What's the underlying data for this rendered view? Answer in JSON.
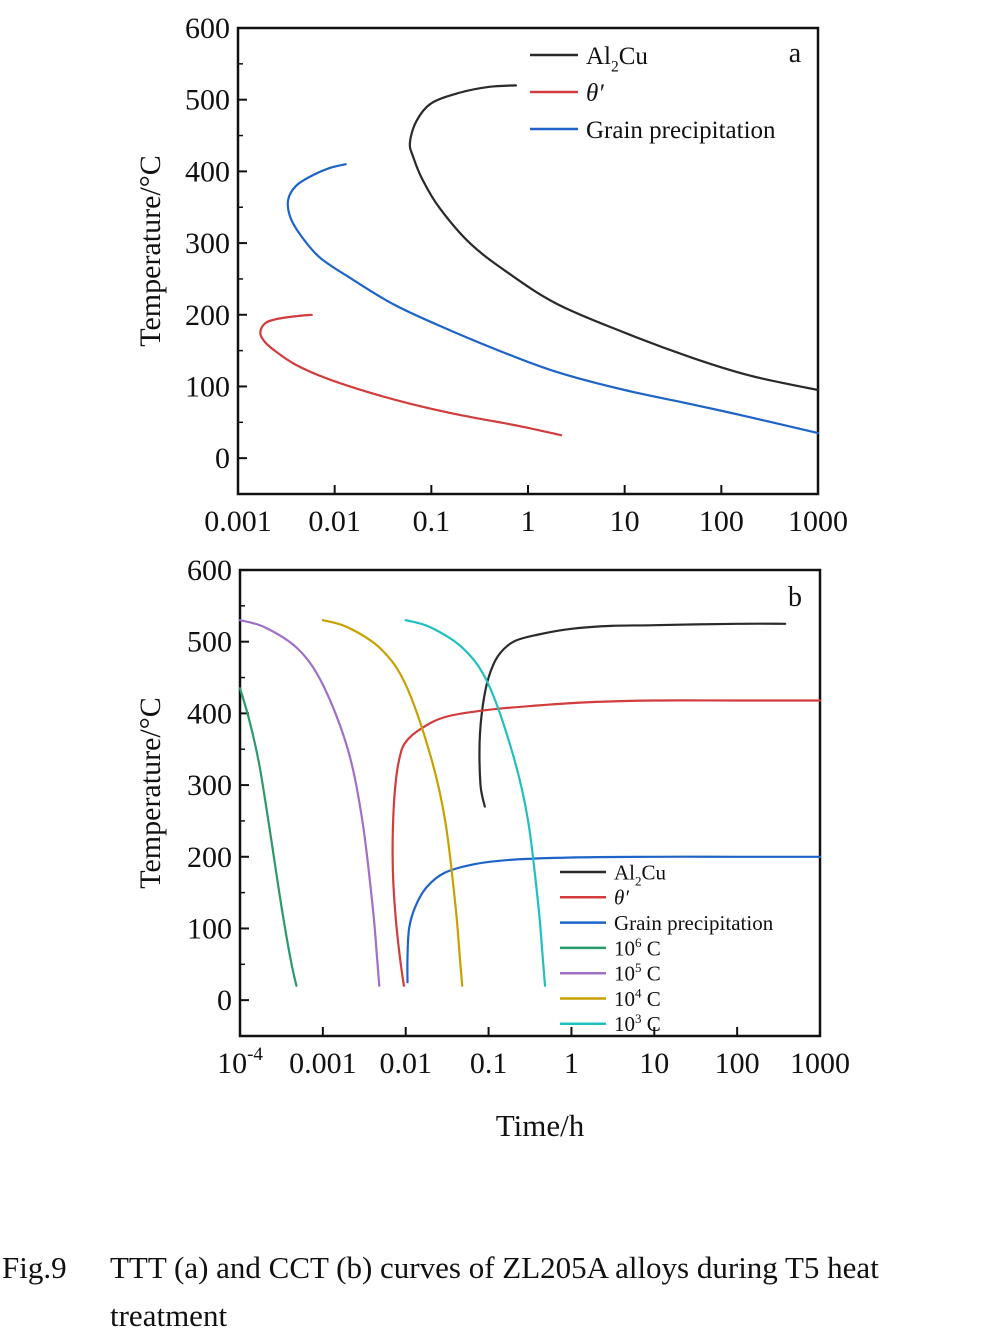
{
  "chart_data": [
    {
      "panel": "a",
      "type": "line",
      "title": "",
      "xlabel": "",
      "ylabel": "Temperature/°C",
      "xscale": "log",
      "xlim": [
        0.001,
        1000
      ],
      "ylim": [
        -50,
        600
      ],
      "xticks": [
        {
          "v": 0.001,
          "label": "0.001"
        },
        {
          "v": 0.01,
          "label": "0.01"
        },
        {
          "v": 0.1,
          "label": "0.1"
        },
        {
          "v": 1,
          "label": "1"
        },
        {
          "v": 10,
          "label": "10"
        },
        {
          "v": 100,
          "label": "100"
        },
        {
          "v": 1000,
          "label": "1000"
        }
      ],
      "yticks": [
        0,
        100,
        200,
        300,
        400,
        500,
        600
      ],
      "grid": false,
      "legend_position": "top-right",
      "series": [
        {
          "name": "Al2Cu",
          "label_main": "Al",
          "label_sub": "2",
          "label_tail": "Cu",
          "color": "#2a2a2a",
          "points": [
            [
              0.75,
              520
            ],
            [
              0.4,
              518
            ],
            [
              0.2,
              510
            ],
            [
              0.1,
              495
            ],
            [
              0.07,
              470
            ],
            [
              0.06,
              440
            ],
            [
              0.065,
              420
            ],
            [
              0.08,
              390
            ],
            [
              0.12,
              350
            ],
            [
              0.25,
              300
            ],
            [
              0.6,
              260
            ],
            [
              2,
              215
            ],
            [
              10,
              175
            ],
            [
              50,
              140
            ],
            [
              200,
              115
            ],
            [
              1000,
              95
            ]
          ]
        },
        {
          "name": "θ′",
          "label_main": "θ′",
          "label_sub": "",
          "label_tail": "",
          "color": "#d23c3c",
          "points": [
            [
              0.0058,
              200
            ],
            [
              0.004,
              198
            ],
            [
              0.0025,
              194
            ],
            [
              0.0019,
              188
            ],
            [
              0.0017,
              175
            ],
            [
              0.0019,
              162
            ],
            [
              0.0025,
              148
            ],
            [
              0.004,
              130
            ],
            [
              0.008,
              112
            ],
            [
              0.02,
              94
            ],
            [
              0.06,
              76
            ],
            [
              0.2,
              60
            ],
            [
              0.8,
              45
            ],
            [
              2.2,
              32
            ]
          ]
        },
        {
          "name": "Grain precipitation",
          "label_main": "Grain precipitation",
          "label_sub": "",
          "label_tail": "",
          "color": "#1e64c8",
          "points": [
            [
              0.013,
              410
            ],
            [
              0.009,
              405
            ],
            [
              0.006,
              395
            ],
            [
              0.004,
              380
            ],
            [
              0.0033,
              360
            ],
            [
              0.0035,
              335
            ],
            [
              0.0045,
              310
            ],
            [
              0.007,
              280
            ],
            [
              0.015,
              250
            ],
            [
              0.04,
              215
            ],
            [
              0.12,
              185
            ],
            [
              0.5,
              150
            ],
            [
              2,
              120
            ],
            [
              10,
              95
            ],
            [
              50,
              75
            ],
            [
              200,
              57
            ],
            [
              1000,
              35
            ]
          ]
        }
      ],
      "annotation": "a"
    },
    {
      "panel": "b",
      "type": "line",
      "title": "",
      "xlabel": "Time/h",
      "ylabel": "Temperature/°C",
      "xscale": "log",
      "xlim": [
        0.0001,
        1000
      ],
      "ylim": [
        -50,
        600
      ],
      "xticks": [
        {
          "v": 0.0001,
          "label": "10",
          "sup": "-4"
        },
        {
          "v": 0.001,
          "label": "0.001"
        },
        {
          "v": 0.01,
          "label": "0.01"
        },
        {
          "v": 0.1,
          "label": "0.1"
        },
        {
          "v": 1,
          "label": "1"
        },
        {
          "v": 10,
          "label": "10"
        },
        {
          "v": 100,
          "label": "100"
        },
        {
          "v": 1000,
          "label": "1000"
        }
      ],
      "yticks": [
        0,
        100,
        200,
        300,
        400,
        500,
        600
      ],
      "grid": false,
      "legend_position": "bottom-right",
      "series": [
        {
          "name": "Al2Cu",
          "label_main": "Al",
          "label_sub": "2",
          "label_tail": "Cu",
          "color": "#2a2a2a",
          "points": [
            [
              0.09,
              270
            ],
            [
              0.08,
              300
            ],
            [
              0.078,
              360
            ],
            [
              0.085,
              410
            ],
            [
              0.1,
              450
            ],
            [
              0.13,
              480
            ],
            [
              0.2,
              500
            ],
            [
              0.4,
              510
            ],
            [
              1,
              518
            ],
            [
              3,
              522
            ],
            [
              10,
              523
            ],
            [
              100,
              525
            ],
            [
              380,
              525
            ]
          ]
        },
        {
          "name": "θ′",
          "label_main": "θ′",
          "label_sub": "",
          "label_tail": "",
          "color": "#d23c3c",
          "points": [
            [
              0.0095,
              20
            ],
            [
              0.0085,
              60
            ],
            [
              0.0075,
              120
            ],
            [
              0.007,
              180
            ],
            [
              0.007,
              240
            ],
            [
              0.0075,
              300
            ],
            [
              0.0085,
              340
            ],
            [
              0.01,
              360
            ],
            [
              0.015,
              378
            ],
            [
              0.03,
              395
            ],
            [
              0.1,
              405
            ],
            [
              0.5,
              412
            ],
            [
              2,
              416
            ],
            [
              10,
              418
            ],
            [
              100,
              418
            ],
            [
              1000,
              418
            ]
          ]
        },
        {
          "name": "Grain precipitation",
          "label_main": "Grain precipitation",
          "label_sub": "",
          "label_tail": "",
          "color": "#1e64c8",
          "points": [
            [
              0.0105,
              25
            ],
            [
              0.0105,
              60
            ],
            [
              0.011,
              100
            ],
            [
              0.013,
              130
            ],
            [
              0.018,
              158
            ],
            [
              0.03,
              178
            ],
            [
              0.07,
              190
            ],
            [
              0.2,
              196
            ],
            [
              1,
              199
            ],
            [
              10,
              200
            ],
            [
              100,
              200
            ],
            [
              1000,
              200
            ]
          ]
        },
        {
          "name": "10^6 C",
          "label_main": "10",
          "label_sup": "6",
          "label_tail": " C",
          "color": "#2a9a6a",
          "points": [
            [
              0.0001,
              435
            ],
            [
              0.00013,
              390
            ],
            [
              0.00017,
              330
            ],
            [
              0.00022,
              250
            ],
            [
              0.00028,
              170
            ],
            [
              0.00035,
              100
            ],
            [
              0.00042,
              50
            ],
            [
              0.00048,
              20
            ]
          ]
        },
        {
          "name": "10^5 C",
          "label_main": "10",
          "label_sup": "5",
          "label_tail": " C",
          "color": "#a070c8",
          "points": [
            [
              0.0001,
              530
            ],
            [
              0.0002,
              520
            ],
            [
              0.0005,
              490
            ],
            [
              0.001,
              440
            ],
            [
              0.002,
              350
            ],
            [
              0.003,
              250
            ],
            [
              0.004,
              130
            ],
            [
              0.0045,
              60
            ],
            [
              0.0048,
              20
            ]
          ]
        },
        {
          "name": "10^4 C",
          "label_main": "10",
          "label_sup": "4",
          "label_tail": " C",
          "color": "#c8a000",
          "points": [
            [
              0.001,
              530
            ],
            [
              0.002,
              520
            ],
            [
              0.005,
              490
            ],
            [
              0.01,
              440
            ],
            [
              0.02,
              340
            ],
            [
              0.03,
              250
            ],
            [
              0.04,
              130
            ],
            [
              0.045,
              60
            ],
            [
              0.048,
              20
            ]
          ]
        },
        {
          "name": "10^3 C",
          "label_main": "10",
          "label_sup": "3",
          "label_tail": " C",
          "color": "#20c0c0",
          "points": [
            [
              0.01,
              530
            ],
            [
              0.02,
              520
            ],
            [
              0.05,
              490
            ],
            [
              0.1,
              440
            ],
            [
              0.2,
              340
            ],
            [
              0.3,
              250
            ],
            [
              0.4,
              130
            ],
            [
              0.45,
              60
            ],
            [
              0.48,
              20
            ]
          ]
        }
      ],
      "annotation": "b"
    }
  ],
  "caption": {
    "number": "Fig.9",
    "text": "TTT (a) and CCT (b) curves of ZL205A alloys during T5 heat treatment"
  }
}
